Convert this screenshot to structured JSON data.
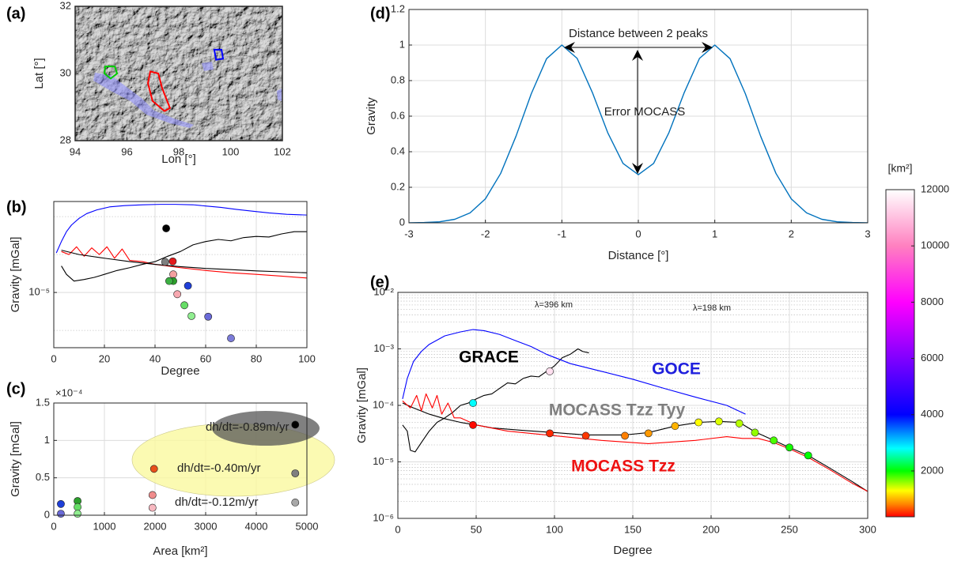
{
  "chart_data": [
    {
      "label": "(a)",
      "type": "map",
      "xlabel": "Lon [°]",
      "ylabel": "Lat [°]",
      "xlim": [
        94,
        102
      ],
      "ylim": [
        28,
        32
      ],
      "xticks": [
        94,
        96,
        98,
        100,
        102
      ],
      "yticks": [
        28,
        30,
        32
      ],
      "series": [
        {
          "color": "#ff0000",
          "x": [
            96.9,
            97.21,
            97.36,
            97.66,
            97.45,
            96.99,
            96.81
          ],
          "values": [
            30.06,
            30,
            29.56,
            28.97,
            28.88,
            29.18,
            29.71
          ]
        },
        {
          "color": "#00cc00",
          "x": [
            95.16,
            95.53,
            95.62,
            95.37,
            95.13
          ],
          "values": [
            30.21,
            30.21,
            30,
            29.85,
            30
          ]
        },
        {
          "color": "#0000ff",
          "x": [
            99.37,
            99.65,
            99.71,
            99.44
          ],
          "values": [
            30.71,
            30.71,
            30.44,
            30.41
          ]
        }
      ]
    },
    {
      "label": "(b)",
      "type": "line",
      "log_y": true,
      "grid": true,
      "xlabel": "Degree",
      "ylabel": "Gravity [mGal]",
      "xlim": [
        0,
        100
      ],
      "ylim": [
        3.5e-07,
        0.0025
      ],
      "xticks": [
        0,
        20,
        40,
        60,
        80,
        100
      ],
      "yticks": [
        {
          "value": 1e-05,
          "label": "10⁻⁵"
        }
      ],
      "minor_yticks": [
        1e-06,
        0.0001,
        0.001
      ],
      "series": [
        {
          "color": "#0000ff",
          "x": [
            1,
            3,
            5,
            7,
            10,
            13,
            17,
            22,
            28,
            35,
            42,
            48,
            55,
            60,
            66,
            72,
            78,
            85,
            92,
            100
          ],
          "values": [
            0.00011,
            0.00022,
            0.0004,
            0.0006,
            0.0009,
            0.0012,
            0.0015,
            0.0018,
            0.00195,
            0.00205,
            0.0021,
            0.0021,
            0.00205,
            0.0019,
            0.00175,
            0.00155,
            0.0014,
            0.00125,
            0.00115,
            0.0011
          ]
        },
        {
          "color": "#ff0000",
          "x": [
            3,
            6,
            9,
            12,
            15,
            18,
            21,
            24,
            27,
            30,
            35,
            40,
            50,
            60,
            70,
            80,
            90,
            100
          ],
          "values": [
            0.00012,
            0.0001,
            0.00016,
            9e-05,
            0.00015,
            0.0001,
            0.00016,
            8e-05,
            0.00014,
            7e-05,
            6.5e-05,
            5.5e-05,
            4.5e-05,
            3.8e-05,
            3.3e-05,
            3e-05,
            2.7e-05,
            2.4e-05
          ]
        },
        {
          "color": "#000000",
          "x": [
            3,
            10,
            20,
            30,
            40,
            50,
            60,
            70,
            80,
            90,
            100
          ],
          "values": [
            0.00013,
            0.0001,
            8e-05,
            6.5e-05,
            5.5e-05,
            4.8e-05,
            4.3e-05,
            4e-05,
            3.7e-05,
            3.5e-05,
            3.3e-05
          ]
        },
        {
          "color": "#000000",
          "x": [
            3,
            5,
            8,
            12,
            16,
            20,
            25,
            30,
            35,
            40,
            45,
            50,
            55,
            60,
            65,
            70,
            75,
            80,
            85,
            90,
            95,
            100
          ],
          "values": [
            5e-05,
            3e-05,
            2e-05,
            2.2e-05,
            2.5e-05,
            3e-05,
            3.8e-05,
            4.5e-05,
            5.5e-05,
            6.5e-05,
            9e-05,
            0.00012,
            0.00018,
            0.00022,
            0.00025,
            0.00023,
            0.00028,
            0.0003,
            0.00029,
            0.00035,
            0.0004,
            0.0004
          ]
        },
        {
          "marker": "circle",
          "x": [
            44.4,
            44,
            47,
            47.2,
            47.2,
            45.6,
            53,
            48.8,
            51.6,
            54.4,
            61,
            70
          ],
          "values": [
            0.00049,
            6.4e-05,
            6.6e-05,
            3e-05,
            2e-05,
            2e-05,
            1.5e-05,
            9e-06,
            4.6e-06,
            2.4e-06,
            2.3e-06,
            6.2e-07
          ],
          "colors": [
            "#000000",
            "#7f7f7f",
            "#e41a1c",
            "#f4a0a0",
            "#2ca02c",
            "#3cb043",
            "#1f3fd8",
            "#f7a8b0",
            "#66dd66",
            "#90ee90",
            "#6a6ad8",
            "#7b7bd8"
          ]
        }
      ]
    },
    {
      "label": "(c)",
      "type": "scatter",
      "grid": true,
      "xlabel": "Area [km²]",
      "ylabel": "Gravity [mGal]",
      "y_multiplier": "×10⁻⁴",
      "xlim": [
        0,
        5000
      ],
      "ylim": [
        0,
        1.5
      ],
      "xticks": [
        0,
        1000,
        2000,
        3000,
        4000,
        5000
      ],
      "yticks": [
        0,
        0.5,
        1,
        1.5
      ],
      "annotations": [
        "dh/dt=-0.89m/yr",
        "dh/dt=-0.40m/yr",
        "dh/dt=-0.12m/yr"
      ],
      "series": [
        {
          "marker": "circle",
          "x": [
            140,
            140,
            470,
            470,
            470,
            1980,
            1950,
            1950,
            4770,
            4770,
            4770
          ],
          "values": [
            0.15,
            0.02,
            0.19,
            0.11,
            0.02,
            0.62,
            0.27,
            0.1,
            1.21,
            0.56,
            0.17
          ],
          "colors": [
            "#1f3fd8",
            "#6a6ad8",
            "#2ca02c",
            "#66dd66",
            "#90ee90",
            "#e8501a",
            "#f08c8c",
            "#f7b8c0",
            "#000000",
            "#7f7f7f",
            "#a8a8a8"
          ]
        }
      ]
    },
    {
      "label": "(d)",
      "type": "line",
      "grid": true,
      "xlabel": "Distance [°]",
      "ylabel": "Gravity",
      "xlim": [
        -3,
        3
      ],
      "ylim": [
        0,
        1.2
      ],
      "xticks": [
        -3,
        -2,
        -1,
        0,
        1,
        2,
        3
      ],
      "yticks": [
        0,
        0.2,
        0.4,
        0.6,
        0.8,
        1,
        1.2
      ],
      "annotations": [
        "Distance between 2 peaks",
        "Error MOCASS"
      ],
      "series": [
        {
          "color": "#0072bd",
          "x": [
            -3,
            -2.8,
            -2.6,
            -2.4,
            -2.2,
            -2,
            -1.8,
            -1.6,
            -1.4,
            -1.2,
            -1,
            -0.8,
            -0.6,
            -0.4,
            -0.2,
            0,
            0.2,
            0.4,
            0.6,
            0.8,
            1,
            1.2,
            1.4,
            1.6,
            1.8,
            2,
            2.2,
            2.4,
            2.6,
            2.8,
            3
          ],
          "values": [
            0,
            0.002,
            0.006,
            0.02,
            0.056,
            0.135,
            0.278,
            0.487,
            0.726,
            0.923,
            1,
            0.925,
            0.732,
            0.507,
            0.334,
            0.271,
            0.334,
            0.507,
            0.732,
            0.925,
            1,
            0.923,
            0.726,
            0.487,
            0.278,
            0.135,
            0.056,
            0.02,
            0.006,
            0.002,
            0
          ]
        }
      ]
    },
    {
      "label": "(e)",
      "type": "line",
      "log_y": true,
      "grid": true,
      "xlabel": "Degree",
      "ylabel": "Gravity [mGal]",
      "xlim": [
        0,
        300
      ],
      "ylim": [
        1e-06,
        0.01
      ],
      "xticks": [
        0,
        50,
        100,
        150,
        200,
        250,
        300
      ],
      "yticks": [
        {
          "value": 1e-06,
          "label": "10⁻⁶"
        },
        {
          "value": 1e-05,
          "label": "10⁻⁵"
        },
        {
          "value": 0.0001,
          "label": "10⁻⁴"
        },
        {
          "value": 0.001,
          "label": "10⁻³"
        },
        {
          "value": 0.01,
          "label": "10⁻²"
        }
      ],
      "minor_yticks": [
        2e-06,
        3e-06,
        4e-06,
        5e-06,
        6e-06,
        7e-06,
        8e-06,
        9e-06,
        2e-05,
        3e-05,
        4e-05,
        5e-05,
        6e-05,
        7e-05,
        8e-05,
        9e-05,
        0.0002,
        0.0003,
        0.0004,
        0.0005,
        0.0006,
        0.0007,
        0.0008,
        0.0009,
        0.002,
        0.003,
        0.004,
        0.005,
        0.006,
        0.007,
        0.008,
        0.009
      ],
      "annotations": [
        "λ=396 km",
        "λ=198 km"
      ],
      "series": [
        {
          "name": "GRACE",
          "color": "#000000",
          "label_color": "#000000",
          "x": [
            3,
            6,
            8,
            11,
            15,
            20,
            25,
            30,
            35,
            40,
            45,
            50,
            55,
            60,
            65,
            70,
            75,
            80,
            85,
            90,
            95,
            100,
            105,
            110,
            115,
            118,
            122
          ],
          "values": [
            4.5e-05,
            3.5e-05,
            1.6e-05,
            1.5e-05,
            2.2e-05,
            3.5e-05,
            5e-05,
            6e-05,
            7.5e-05,
            0.0001,
            0.00011,
            0.00013,
            0.00015,
            0.00016,
            0.0002,
            0.00025,
            0.00024,
            0.0003,
            0.00033,
            0.00032,
            0.0004,
            0.0005,
            0.0007,
            0.0008,
            0.001,
            0.0009,
            0.00085
          ]
        },
        {
          "name": "GOCE",
          "color": "#0000ff",
          "label_color": "#1f1fdd",
          "x": [
            3,
            6,
            10,
            15,
            20,
            30,
            40,
            48,
            55,
            65,
            75,
            85,
            95,
            110,
            130,
            150,
            170,
            190,
            210,
            222
          ],
          "values": [
            0.00013,
            0.0003,
            0.0006,
            0.0009,
            0.0012,
            0.0017,
            0.002,
            0.0022,
            0.0021,
            0.0018,
            0.0014,
            0.0011,
            0.0008,
            0.00055,
            0.0004,
            0.00029,
            0.0002,
            0.00014,
            0.0001,
            7e-05
          ]
        },
        {
          "name": "MOCASS Tzz Tyy",
          "color": "#000000",
          "label_color": "#7f7f7f",
          "x": [
            3,
            10,
            20,
            30,
            40,
            50,
            60,
            80,
            100,
            120,
            145,
            160,
            177,
            192,
            205,
            218,
            228,
            240,
            250,
            262,
            275,
            290,
            300
          ],
          "values": [
            0.00011,
            9e-05,
            7e-05,
            5.8e-05,
            5e-05,
            4.5e-05,
            4e-05,
            3.6e-05,
            3.3e-05,
            3e-05,
            3e-05,
            3.3e-05,
            4.3e-05,
            5e-05,
            5.2e-05,
            5e-05,
            3.4e-05,
            2.4e-05,
            1.8e-05,
            1.3e-05,
            8e-06,
            4.5e-06,
            3e-06
          ]
        },
        {
          "name": "MOCASS Tzz",
          "color": "#ff0000",
          "label_color": "#ee1111",
          "x": [
            3,
            8,
            12,
            15,
            18,
            22,
            25,
            28,
            32,
            36,
            40,
            50,
            70,
            100,
            130,
            160,
            190,
            210,
            220,
            230,
            240,
            250,
            262,
            275,
            290,
            300
          ],
          "values": [
            0.00012,
            9e-05,
            0.00015,
            8e-05,
            0.00016,
            9e-05,
            0.00015,
            7e-05,
            0.00011,
            6e-05,
            6e-05,
            4.5e-05,
            3.5e-05,
            2.9e-05,
            2.4e-05,
            2.1e-05,
            2.4e-05,
            2.8e-05,
            2.6e-05,
            2.6e-05,
            2.2e-05,
            1.7e-05,
            1.2e-05,
            7.5e-06,
            4.2e-06,
            3e-06
          ]
        },
        {
          "marker": "circle",
          "x": [
            48,
            48,
            97,
            97,
            120,
            145,
            160,
            177,
            192,
            205,
            218,
            228,
            240,
            250,
            262
          ],
          "values": [
            0.00011,
            4.5e-05,
            0.0004,
            3.2e-05,
            2.9e-05,
            2.9e-05,
            3.2e-05,
            4.3e-05,
            5e-05,
            5.2e-05,
            4.8e-05,
            3.3e-05,
            2.4e-05,
            1.8e-05,
            1.3e-05
          ],
          "areas": [
            2800,
            400,
            11500,
            500,
            550,
            800,
            900,
            1000,
            1300,
            1400,
            1500,
            1600,
            1800,
            1950,
            2000
          ]
        }
      ],
      "colorbar": {
        "label": "[km²]",
        "lim": [
          370,
          12000
        ],
        "ticks": [
          2000,
          4000,
          6000,
          8000,
          10000,
          12000
        ],
        "colormap": [
          {
            "value": 370,
            "color": "#ff0000"
          },
          {
            "value": 800,
            "color": "#ff8000"
          },
          {
            "value": 1300,
            "color": "#ffff00"
          },
          {
            "value": 2000,
            "color": "#00ff00"
          },
          {
            "value": 2800,
            "color": "#00ffff"
          },
          {
            "value": 4000,
            "color": "#0000ff"
          },
          {
            "value": 6000,
            "color": "#8000ff"
          },
          {
            "value": 8000,
            "color": "#ff00ff"
          },
          {
            "value": 10000,
            "color": "#ff80c0"
          },
          {
            "value": 12000,
            "color": "#ffffff"
          }
        ]
      }
    }
  ]
}
